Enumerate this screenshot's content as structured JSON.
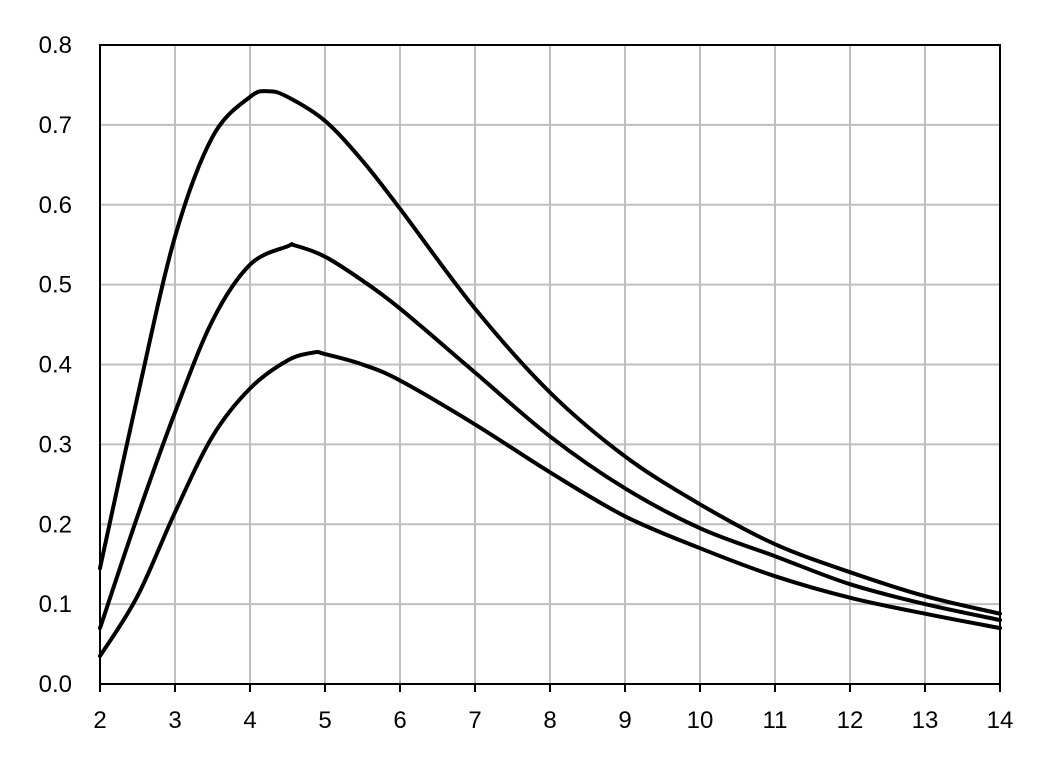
{
  "chart_data": {
    "type": "line",
    "title": "",
    "xlabel": "",
    "ylabel": "",
    "xlim": [
      2,
      14
    ],
    "ylim": [
      0,
      0.8
    ],
    "grid": true,
    "legend": "none",
    "x_ticks": [
      "2",
      "3",
      "4",
      "5",
      "6",
      "7",
      "8",
      "9",
      "10",
      "11",
      "12",
      "13",
      "14"
    ],
    "y_ticks": [
      "0.0",
      "0.1",
      "0.2",
      "0.3",
      "0.4",
      "0.5",
      "0.6",
      "0.7",
      "0.8"
    ],
    "series": [
      {
        "x": [
          2,
          2.5,
          3,
          3.5,
          4,
          4.25,
          4.5,
          5,
          5.5,
          6,
          7,
          8,
          9,
          10,
          11,
          12,
          13,
          14
        ],
        "y": [
          0.145,
          0.36,
          0.56,
          0.685,
          0.735,
          0.742,
          0.735,
          0.705,
          0.655,
          0.595,
          0.47,
          0.365,
          0.285,
          0.225,
          0.175,
          0.14,
          0.11,
          0.088
        ]
      },
      {
        "x": [
          2,
          2.5,
          3,
          3.5,
          4,
          4.5,
          4.6,
          5,
          5.5,
          6,
          7,
          8,
          9,
          10,
          11,
          12,
          13,
          14
        ],
        "y": [
          0.07,
          0.21,
          0.34,
          0.455,
          0.525,
          0.548,
          0.549,
          0.535,
          0.505,
          0.47,
          0.39,
          0.31,
          0.245,
          0.195,
          0.16,
          0.125,
          0.1,
          0.08
        ]
      },
      {
        "x": [
          2,
          2.5,
          3,
          3.5,
          4,
          4.5,
          4.85,
          5,
          5.5,
          6,
          7,
          8,
          9,
          10,
          11,
          12,
          13,
          14
        ],
        "y": [
          0.035,
          0.11,
          0.215,
          0.31,
          0.37,
          0.405,
          0.415,
          0.413,
          0.4,
          0.38,
          0.325,
          0.265,
          0.21,
          0.17,
          0.135,
          0.108,
          0.088,
          0.07
        ]
      }
    ]
  }
}
